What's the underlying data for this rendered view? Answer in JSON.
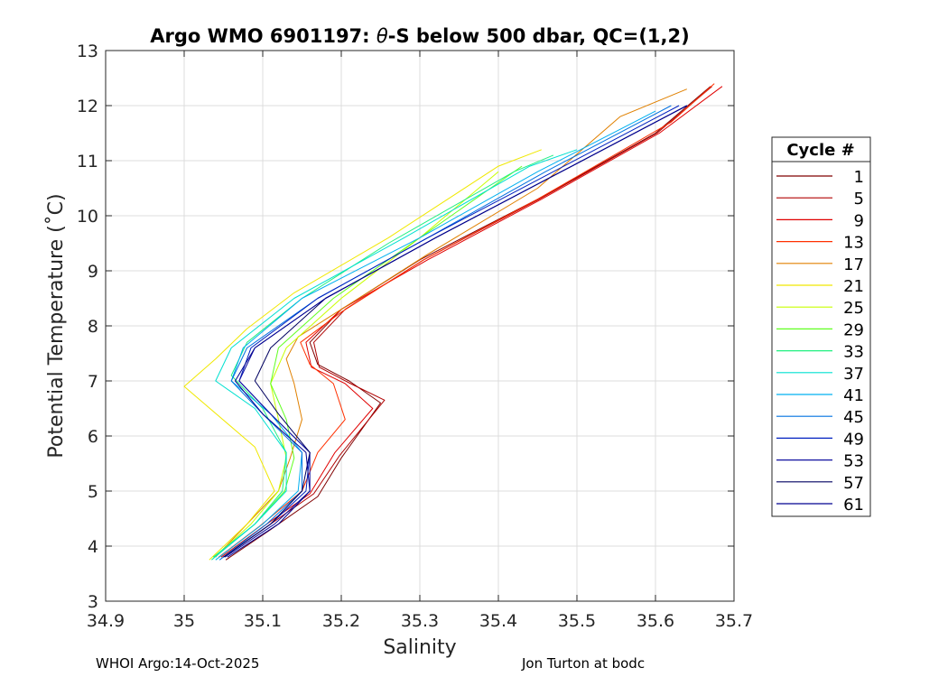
{
  "chart_data": {
    "type": "line",
    "title_prefix": "Argo WMO 6901197: ",
    "title_symbol": "θ",
    "title_suffix": "-S below 500 dbar,  QC=(1,2)",
    "xlabel": "Salinity",
    "ylabel": "Potential Temperature (˚C)",
    "xlim": [
      34.9,
      35.7
    ],
    "ylim": [
      3,
      13
    ],
    "xticks": [
      "34.9",
      "35",
      "35.1",
      "35.2",
      "35.3",
      "35.4",
      "35.5",
      "35.6",
      "35.7"
    ],
    "yticks": [
      "3",
      "4",
      "5",
      "6",
      "7",
      "8",
      "9",
      "10",
      "11",
      "12",
      "13"
    ],
    "grid": true,
    "legend": {
      "title": "Cycle #",
      "position": "right-outside",
      "entries": [
        {
          "label": "1",
          "color": "#800000"
        },
        {
          "label": "5",
          "color": "#b00000"
        },
        {
          "label": "9",
          "color": "#e00000"
        },
        {
          "label": "13",
          "color": "#ff3000"
        },
        {
          "label": "17",
          "color": "#e08000"
        },
        {
          "label": "21",
          "color": "#f0e800"
        },
        {
          "label": "25",
          "color": "#c8ff00"
        },
        {
          "label": "29",
          "color": "#60ff20"
        },
        {
          "label": "33",
          "color": "#20f080"
        },
        {
          "label": "37",
          "color": "#00e0d0"
        },
        {
          "label": "41",
          "color": "#00b0f0"
        },
        {
          "label": "45",
          "color": "#0070e0"
        },
        {
          "label": "49",
          "color": "#0020c0"
        },
        {
          "label": "53",
          "color": "#1010a0"
        },
        {
          "label": "57",
          "color": "#000060"
        },
        {
          "label": "61",
          "color": "#000090"
        }
      ]
    },
    "series": [
      {
        "name": "1",
        "color": "#800000",
        "S": [
          35.053,
          35.11,
          35.17,
          35.2,
          35.25,
          35.21,
          35.17,
          35.16,
          35.2,
          35.3,
          35.45,
          35.6,
          35.67
        ],
        "T": [
          3.75,
          4.3,
          4.9,
          5.6,
          6.6,
          7.0,
          7.3,
          7.7,
          8.3,
          9.2,
          10.3,
          11.5,
          12.35
        ]
      },
      {
        "name": "5",
        "color": "#b00000",
        "S": [
          35.05,
          35.105,
          35.165,
          35.198,
          35.255,
          35.212,
          35.172,
          35.165,
          35.205,
          35.305,
          35.452,
          35.602,
          35.672
        ],
        "T": [
          3.8,
          4.35,
          4.95,
          5.65,
          6.65,
          6.95,
          7.25,
          7.7,
          8.3,
          9.2,
          10.3,
          11.5,
          12.35
        ]
      },
      {
        "name": "9",
        "color": "#e00000",
        "S": [
          35.047,
          35.1,
          35.16,
          35.192,
          35.24,
          35.205,
          35.162,
          35.155,
          35.2,
          35.31,
          35.455,
          35.605,
          35.685
        ],
        "T": [
          3.8,
          4.35,
          4.95,
          5.7,
          6.5,
          6.95,
          7.25,
          7.7,
          8.3,
          9.2,
          10.3,
          11.5,
          12.35
        ]
      },
      {
        "name": "13",
        "color": "#ff3000",
        "S": [
          35.044,
          35.095,
          35.15,
          35.17,
          35.205,
          35.19,
          35.16,
          35.148,
          35.2,
          35.305,
          35.45,
          35.62,
          35.675
        ],
        "T": [
          3.8,
          4.35,
          5.0,
          5.7,
          6.3,
          6.95,
          7.3,
          7.7,
          8.25,
          9.2,
          10.3,
          11.7,
          12.4
        ]
      },
      {
        "name": "17",
        "color": "#e08000",
        "S": [
          35.04,
          35.08,
          35.12,
          35.135,
          35.15,
          35.14,
          35.13,
          35.145,
          35.2,
          35.31,
          35.45,
          35.555,
          35.64
        ],
        "T": [
          3.8,
          4.4,
          5.0,
          5.6,
          6.3,
          6.95,
          7.4,
          7.8,
          8.3,
          9.3,
          10.5,
          11.8,
          12.3
        ]
      },
      {
        "name": "21",
        "color": "#f0e800",
        "S": [
          35.032,
          35.08,
          35.115,
          35.09,
          35.0,
          35.04,
          35.08,
          35.14,
          35.26,
          35.4,
          35.455
        ],
        "T": [
          3.75,
          4.4,
          5.0,
          5.8,
          6.9,
          7.4,
          7.95,
          8.6,
          9.6,
          10.9,
          11.2
        ]
      },
      {
        "name": "25",
        "color": "#c8ff00",
        "S": [
          35.035,
          35.085,
          35.12,
          35.13,
          35.12,
          35.11,
          35.13,
          35.2,
          35.3,
          35.4
        ],
        "T": [
          3.75,
          4.4,
          5.0,
          5.6,
          6.3,
          6.95,
          7.6,
          8.5,
          9.6,
          10.8
        ]
      },
      {
        "name": "29",
        "color": "#60ff20",
        "S": [
          35.038,
          35.09,
          35.128,
          35.14,
          35.13,
          35.11,
          35.12,
          35.19,
          35.3,
          35.43
        ],
        "T": [
          3.8,
          4.4,
          5.0,
          5.6,
          6.3,
          6.95,
          7.6,
          8.5,
          9.6,
          10.9
        ]
      },
      {
        "name": "33",
        "color": "#20f080",
        "S": [
          35.037,
          35.09,
          35.125,
          35.13,
          35.1,
          35.06,
          35.08,
          35.15,
          35.26,
          35.42,
          35.47
        ],
        "T": [
          3.8,
          4.4,
          5.0,
          5.7,
          6.5,
          7.1,
          7.7,
          8.5,
          9.5,
          10.8,
          11.1
        ]
      },
      {
        "name": "37",
        "color": "#00e0d0",
        "S": [
          35.035,
          35.09,
          35.13,
          35.13,
          35.09,
          35.04,
          35.06,
          35.14,
          35.28,
          35.44,
          35.5
        ],
        "T": [
          3.75,
          4.4,
          5.0,
          5.7,
          6.5,
          7.0,
          7.6,
          8.5,
          9.6,
          10.9,
          11.2
        ]
      },
      {
        "name": "41",
        "color": "#00b0f0",
        "S": [
          35.04,
          35.1,
          35.145,
          35.15,
          35.11,
          35.06,
          35.075,
          35.15,
          35.3,
          35.45,
          35.6
        ],
        "T": [
          3.75,
          4.4,
          5.0,
          5.7,
          6.4,
          7.0,
          7.6,
          8.5,
          9.6,
          10.8,
          11.9
        ]
      },
      {
        "name": "45",
        "color": "#0070e0",
        "S": [
          35.045,
          35.105,
          35.15,
          35.15,
          35.1,
          35.06,
          35.08,
          35.17,
          35.31,
          35.46,
          35.62
        ],
        "T": [
          3.75,
          4.4,
          5.0,
          5.7,
          6.4,
          7.0,
          7.6,
          8.5,
          9.6,
          10.8,
          12.0
        ]
      },
      {
        "name": "49",
        "color": "#0020c0",
        "S": [
          35.05,
          35.11,
          35.155,
          35.16,
          35.11,
          35.07,
          35.085,
          35.17,
          35.31,
          35.47,
          35.63
        ],
        "T": [
          3.8,
          4.4,
          5.0,
          5.7,
          6.4,
          7.0,
          7.6,
          8.5,
          9.6,
          10.8,
          12.0
        ]
      },
      {
        "name": "53",
        "color": "#1010a0",
        "S": [
          35.052,
          35.115,
          35.16,
          35.16,
          35.11,
          35.07,
          35.09,
          35.18,
          35.32,
          35.48,
          35.64
        ],
        "T": [
          3.8,
          4.4,
          5.0,
          5.7,
          6.4,
          7.0,
          7.6,
          8.5,
          9.6,
          10.8,
          12.0
        ]
      },
      {
        "name": "57",
        "color": "#000060",
        "S": [
          35.05,
          35.11,
          35.15,
          35.16,
          35.12,
          35.09,
          35.11,
          35.18,
          35.32,
          35.48,
          35.64
        ],
        "T": [
          3.8,
          4.4,
          5.0,
          5.7,
          6.4,
          7.0,
          7.6,
          8.5,
          9.6,
          10.8,
          12.0
        ]
      },
      {
        "name": "61",
        "color": "#000090",
        "S": [
          35.055,
          35.12,
          35.16,
          35.155,
          35.1,
          35.065,
          35.09,
          35.18,
          35.32,
          35.48,
          35.64
        ],
        "T": [
          3.8,
          4.4,
          5.0,
          5.7,
          6.4,
          7.0,
          7.6,
          8.5,
          9.6,
          10.8,
          12.0
        ]
      }
    ]
  },
  "footer": {
    "left": "WHOI Argo:14-Oct-2025",
    "right": "Jon Turton at bodc"
  }
}
